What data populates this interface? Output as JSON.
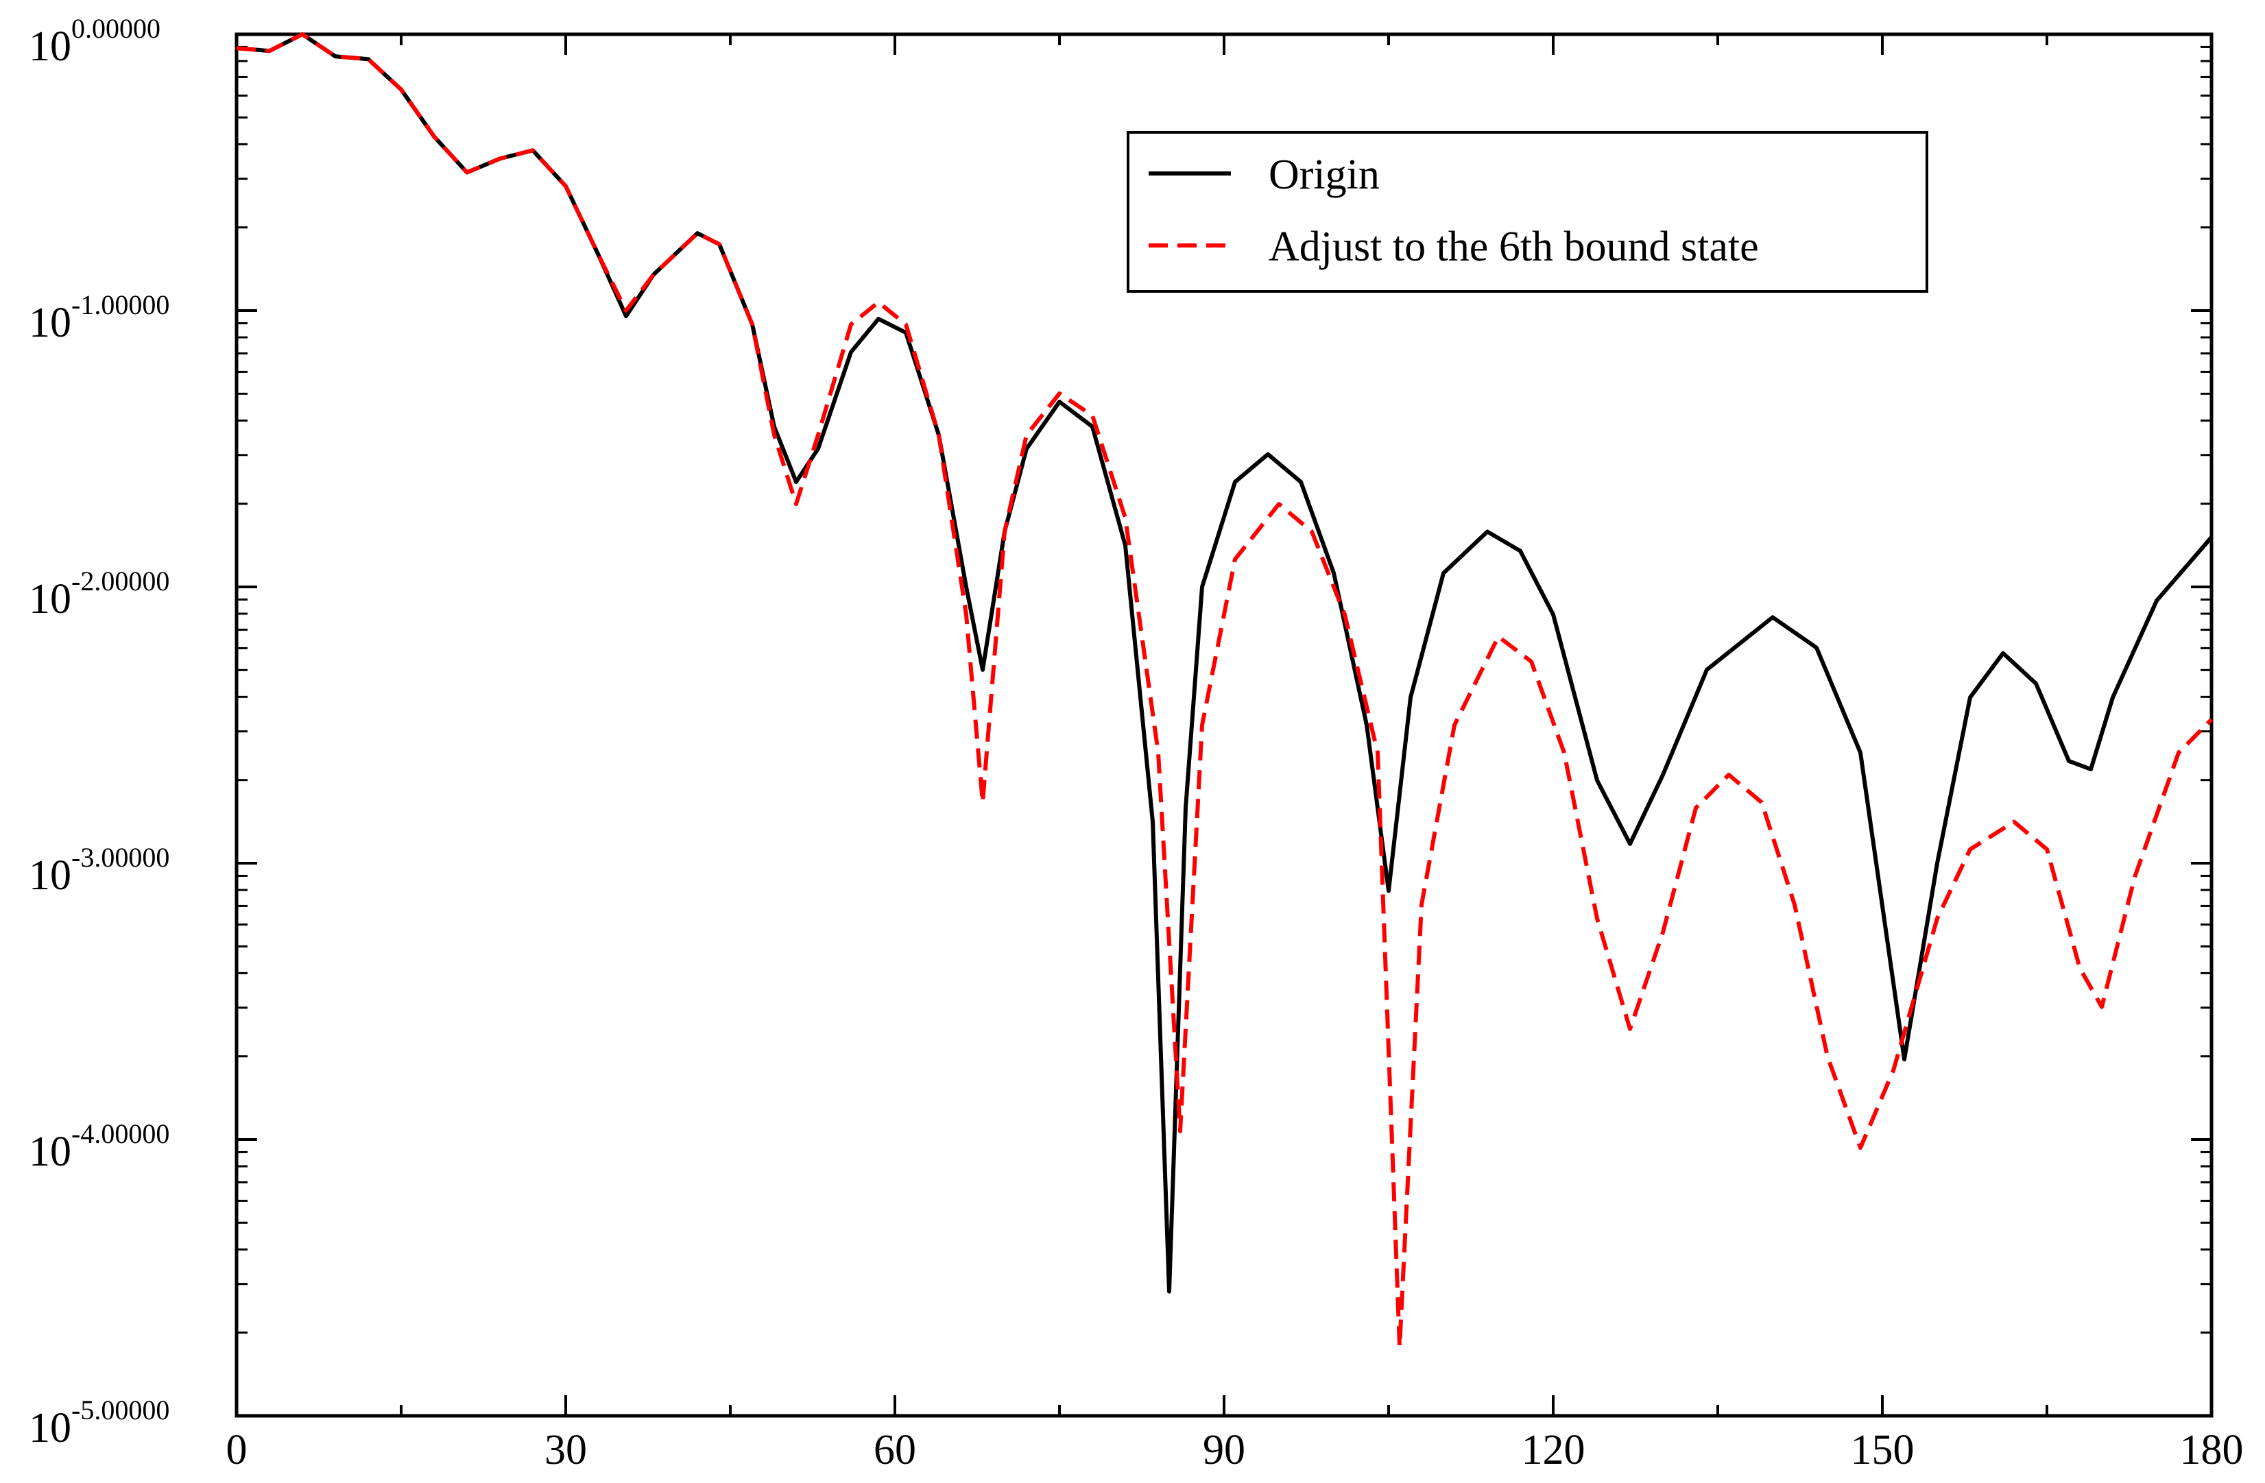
{
  "chart_data": {
    "type": "line",
    "title": "",
    "xlabel": "",
    "ylabel": "",
    "xlim": [
      0,
      180
    ],
    "ylim_log10": [
      -5,
      0
    ],
    "yscale": "log10",
    "grid": false,
    "legend_position": "top-right",
    "x_ticks": [
      0,
      30,
      60,
      90,
      120,
      150,
      180
    ],
    "x_tick_labels": [
      "0",
      "30",
      "60",
      "90",
      "120",
      "150",
      "180"
    ],
    "y_ticks_log10": [
      0,
      -1,
      -2,
      -3,
      -4,
      -5
    ],
    "y_tick_labels": [
      {
        "base": "10",
        "exp": "0.00000"
      },
      {
        "base": "10",
        "exp": "-1.00000"
      },
      {
        "base": "10",
        "exp": "-2.00000"
      },
      {
        "base": "10",
        "exp": "-3.00000"
      },
      {
        "base": "10",
        "exp": "-4.00000"
      },
      {
        "base": "10",
        "exp": "-5.00000"
      }
    ],
    "series": [
      {
        "name": "Origin",
        "color": "#000000",
        "style": "solid",
        "points": [
          [
            0,
            -0.05
          ],
          [
            3,
            -0.06
          ],
          [
            6,
            0.0
          ],
          [
            9,
            -0.08
          ],
          [
            12,
            -0.09
          ],
          [
            15,
            -0.2
          ],
          [
            18,
            -0.37
          ],
          [
            21,
            -0.5
          ],
          [
            24,
            -0.45
          ],
          [
            27,
            -0.42
          ],
          [
            30,
            -0.55
          ],
          [
            33,
            -0.8
          ],
          [
            35.5,
            -1.02
          ],
          [
            38,
            -0.87
          ],
          [
            42,
            -0.72
          ],
          [
            44,
            -0.76
          ],
          [
            47,
            -1.05
          ],
          [
            49,
            -1.42
          ],
          [
            51,
            -1.62
          ],
          [
            53,
            -1.5
          ],
          [
            56,
            -1.15
          ],
          [
            58.5,
            -1.03
          ],
          [
            61,
            -1.08
          ],
          [
            64,
            -1.45
          ],
          [
            66.5,
            -2.0
          ],
          [
            68,
            -2.3
          ],
          [
            70,
            -1.8
          ],
          [
            72,
            -1.5
          ],
          [
            75,
            -1.33
          ],
          [
            78,
            -1.42
          ],
          [
            81,
            -1.85
          ],
          [
            83.5,
            -2.85
          ],
          [
            85,
            -4.55
          ],
          [
            86.5,
            -2.8
          ],
          [
            88,
            -2.0
          ],
          [
            91,
            -1.62
          ],
          [
            94,
            -1.52
          ],
          [
            97,
            -1.62
          ],
          [
            100,
            -1.95
          ],
          [
            103,
            -2.5
          ],
          [
            105,
            -3.1
          ],
          [
            107,
            -2.4
          ],
          [
            110,
            -1.95
          ],
          [
            114,
            -1.8
          ],
          [
            117,
            -1.87
          ],
          [
            120,
            -2.1
          ],
          [
            124,
            -2.7
          ],
          [
            127,
            -2.93
          ],
          [
            130,
            -2.68
          ],
          [
            134,
            -2.3
          ],
          [
            140,
            -2.11
          ],
          [
            144,
            -2.22
          ],
          [
            148,
            -2.6
          ],
          [
            152,
            -3.71
          ],
          [
            155,
            -3.0
          ],
          [
            158,
            -2.4
          ],
          [
            161,
            -2.24
          ],
          [
            164,
            -2.35
          ],
          [
            167,
            -2.63
          ],
          [
            169,
            -2.66
          ],
          [
            171,
            -2.4
          ],
          [
            175,
            -2.05
          ],
          [
            180,
            -1.82
          ]
        ]
      },
      {
        "name": "Adjust to the 6th bound state",
        "color": "#ff0000",
        "style": "dashed",
        "points": [
          [
            0,
            -0.05
          ],
          [
            3,
            -0.06
          ],
          [
            6,
            0.0
          ],
          [
            9,
            -0.08
          ],
          [
            12,
            -0.09
          ],
          [
            15,
            -0.2
          ],
          [
            18,
            -0.37
          ],
          [
            21,
            -0.5
          ],
          [
            24,
            -0.45
          ],
          [
            27,
            -0.42
          ],
          [
            30,
            -0.55
          ],
          [
            33,
            -0.8
          ],
          [
            35.5,
            -1.0
          ],
          [
            38,
            -0.87
          ],
          [
            42,
            -0.72
          ],
          [
            44,
            -0.76
          ],
          [
            47,
            -1.05
          ],
          [
            49,
            -1.45
          ],
          [
            51,
            -1.7
          ],
          [
            53,
            -1.45
          ],
          [
            56,
            -1.05
          ],
          [
            58.5,
            -0.97
          ],
          [
            61,
            -1.05
          ],
          [
            64,
            -1.45
          ],
          [
            66.5,
            -2.1
          ],
          [
            68,
            -2.78
          ],
          [
            70,
            -1.8
          ],
          [
            72,
            -1.45
          ],
          [
            75,
            -1.3
          ],
          [
            78,
            -1.38
          ],
          [
            81,
            -1.75
          ],
          [
            84,
            -2.6
          ],
          [
            86,
            -3.97
          ],
          [
            88,
            -2.5
          ],
          [
            91,
            -1.9
          ],
          [
            95,
            -1.7
          ],
          [
            98,
            -1.8
          ],
          [
            101,
            -2.1
          ],
          [
            104,
            -2.6
          ],
          [
            106,
            -4.75
          ],
          [
            108,
            -3.15
          ],
          [
            111,
            -2.5
          ],
          [
            115,
            -2.18
          ],
          [
            118,
            -2.27
          ],
          [
            121,
            -2.6
          ],
          [
            124,
            -3.2
          ],
          [
            127,
            -3.6
          ],
          [
            130,
            -3.25
          ],
          [
            133,
            -2.8
          ],
          [
            136,
            -2.68
          ],
          [
            139,
            -2.78
          ],
          [
            142,
            -3.15
          ],
          [
            145,
            -3.7
          ],
          [
            148,
            -4.03
          ],
          [
            151,
            -3.75
          ],
          [
            155,
            -3.2
          ],
          [
            158,
            -2.95
          ],
          [
            162,
            -2.85
          ],
          [
            165,
            -2.95
          ],
          [
            168,
            -3.38
          ],
          [
            170,
            -3.52
          ],
          [
            173,
            -3.05
          ],
          [
            177,
            -2.6
          ],
          [
            180,
            -2.48
          ]
        ]
      }
    ]
  }
}
